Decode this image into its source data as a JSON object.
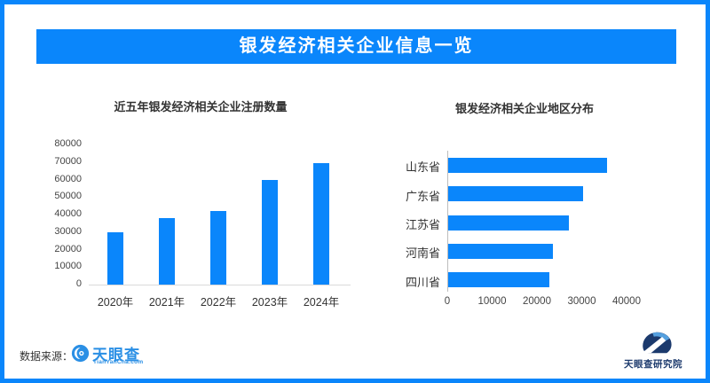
{
  "accent_color": "#0a86fb",
  "header": {
    "title": "银发经济相关企业信息一览"
  },
  "chart_data": [
    {
      "type": "bar",
      "title": "近五年银发经济相关企业注册数量",
      "categories": [
        "2020年",
        "2021年",
        "2022年",
        "2023年",
        "2024年"
      ],
      "values": [
        29800,
        38000,
        42200,
        59500,
        69400
      ],
      "ylim": [
        0,
        80000
      ],
      "yticks": [
        0,
        10000,
        20000,
        30000,
        40000,
        50000,
        60000,
        70000,
        80000
      ],
      "xlabel": "",
      "ylabel": "",
      "grid": false,
      "bar_color": "#0a86fb"
    },
    {
      "type": "bar-horizontal",
      "title": "银发经济相关企业地区分布",
      "categories": [
        "山东省",
        "广东省",
        "江苏省",
        "河南省",
        "四川省"
      ],
      "values": [
        35400,
        30000,
        26900,
        23400,
        22500
      ],
      "xlim": [
        0,
        40000
      ],
      "xticks": [
        0,
        10000,
        20000,
        30000,
        40000
      ],
      "xlabel": "",
      "ylabel": "",
      "grid": false,
      "bar_color": "#0a86fb"
    }
  ],
  "footer": {
    "source_label": "数据来源：",
    "source_logo_name": "天眼查",
    "source_logo_domain": "TianYanCha.com",
    "right_logo_name": "天眼查研究院"
  }
}
